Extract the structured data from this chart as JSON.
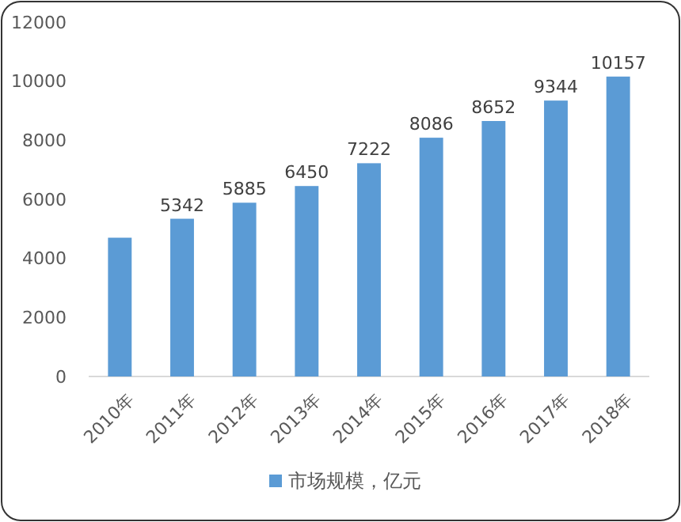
{
  "chart_data": {
    "type": "bar",
    "categories": [
      "2010年",
      "2011年",
      "2012年",
      "2013年",
      "2014年",
      "2015年",
      "2016年",
      "2017年",
      "2018年"
    ],
    "series": [
      {
        "name": "市场规模，亿元",
        "color": "#5b9bd5",
        "values": [
          4700,
          5342,
          5885,
          6450,
          7222,
          8086,
          8652,
          9344,
          10157
        ],
        "value_labels": [
          null,
          "5342",
          "5885",
          "6450",
          "7222",
          "8086",
          "8652",
          "9344",
          "10157"
        ]
      }
    ],
    "ylim": [
      0,
      12000
    ],
    "yticks": [
      0,
      2000,
      4000,
      6000,
      8000,
      10000,
      12000
    ],
    "grid": false,
    "legend": "bottom"
  }
}
